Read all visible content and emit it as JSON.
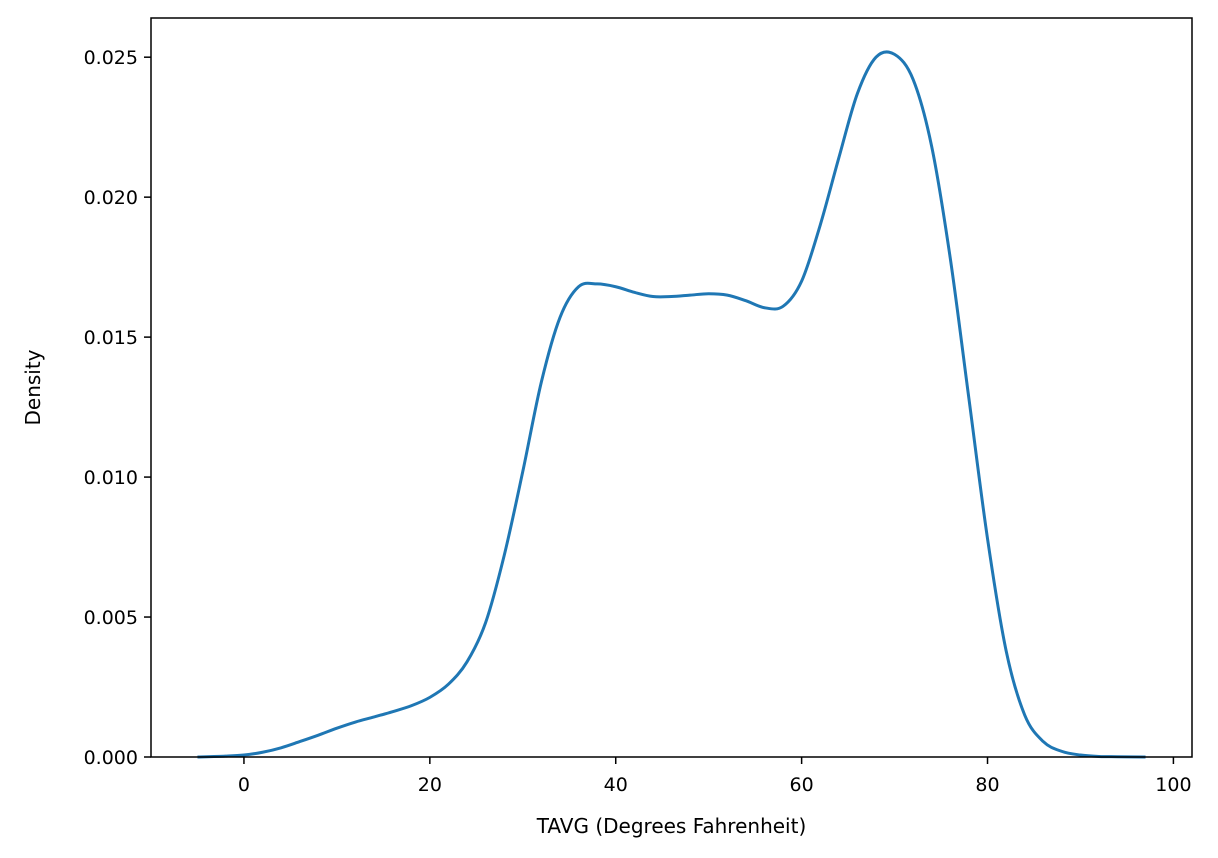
{
  "chart_data": {
    "type": "line",
    "title": "",
    "xlabel": "TAVG (Degrees Fahrenheit)",
    "ylabel": "Density",
    "xlim": [
      -10,
      102
    ],
    "ylim": [
      0,
      0.0264
    ],
    "xticks": [
      0,
      20,
      40,
      60,
      80,
      100
    ],
    "xtick_labels": [
      "0",
      "20",
      "40",
      "60",
      "80",
      "100"
    ],
    "yticks": [
      0.0,
      0.005,
      0.01,
      0.015,
      0.02,
      0.025
    ],
    "ytick_labels": [
      "0.000",
      "0.005",
      "0.010",
      "0.015",
      "0.020",
      "0.025"
    ],
    "grid": false,
    "line_color": "#1f77b4",
    "series": [
      {
        "x": [
          -5,
          -2,
          0,
          2,
          4,
          6,
          8,
          10,
          12,
          14,
          16,
          18,
          20,
          22,
          24,
          26,
          28,
          30,
          32,
          34,
          36,
          38,
          40,
          42,
          44,
          46,
          48,
          50,
          52,
          54,
          56,
          58,
          60,
          62,
          64,
          66,
          68,
          70,
          72,
          74,
          76,
          78,
          80,
          82,
          84,
          86,
          88,
          90,
          92,
          94,
          97
        ],
        "y": [
          0.0,
          3e-05,
          7e-05,
          0.00017,
          0.00033,
          0.00055,
          0.00078,
          0.00103,
          0.00125,
          0.00143,
          0.00162,
          0.00183,
          0.00213,
          0.0026,
          0.0034,
          0.0048,
          0.0072,
          0.0102,
          0.0134,
          0.0157,
          0.0168,
          0.0169,
          0.0168,
          0.0166,
          0.01645,
          0.01645,
          0.0165,
          0.01655,
          0.0165,
          0.0163,
          0.01605,
          0.0161,
          0.017,
          0.019,
          0.0214,
          0.0237,
          0.025,
          0.0251,
          0.0242,
          0.0218,
          0.0178,
          0.0128,
          0.0078,
          0.0038,
          0.0015,
          0.00055,
          0.0002,
          7e-05,
          2e-05,
          1e-05,
          0.0
        ]
      }
    ]
  }
}
